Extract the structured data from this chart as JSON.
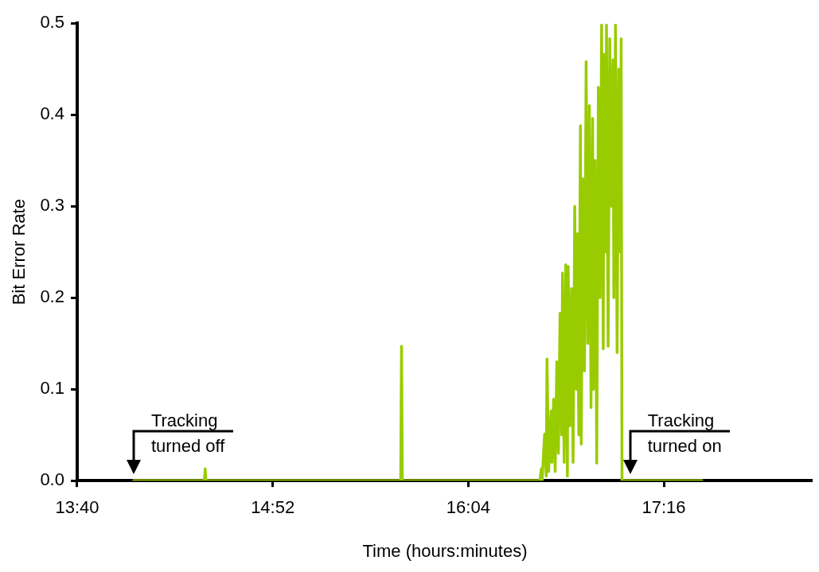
{
  "chart_data": {
    "type": "line",
    "xlabel": "Time (hours:minutes)",
    "ylabel": "Bit Error Rate",
    "xlim": [
      13.6667,
      18.18
    ],
    "xticks": [
      {
        "value": 13.6667,
        "label": "13:40"
      },
      {
        "value": 14.8667,
        "label": "14:52"
      },
      {
        "value": 16.0667,
        "label": "16:04"
      },
      {
        "value": 17.2667,
        "label": "17:16"
      }
    ],
    "ylim": [
      0,
      0.5
    ],
    "yticks": [
      {
        "value": 0,
        "label": "0.0"
      },
      0.1,
      0.2,
      0.3,
      0.4,
      0.5
    ],
    "grid": false,
    "legend": false,
    "marker": "none",
    "line_style": "solid",
    "series": [
      {
        "color": "#99cc00",
        "x": [
          14.013,
          14.447,
          14.452,
          14.457,
          15.652,
          15.657,
          15.662,
          16.506,
          16.515,
          16.52,
          16.535,
          16.545,
          16.55,
          16.56,
          16.575,
          16.58,
          16.59,
          16.6,
          16.61,
          16.62,
          16.63,
          16.64,
          16.645,
          16.655,
          16.665,
          16.675,
          16.68,
          16.69,
          16.7,
          16.71,
          16.72,
          16.73,
          16.735,
          16.745,
          16.755,
          16.76,
          16.77,
          16.78,
          16.79,
          16.8,
          16.81,
          16.82,
          16.83,
          16.835,
          16.845,
          16.855,
          16.865,
          16.875,
          16.885,
          16.895,
          16.9,
          16.91,
          16.915,
          16.925,
          16.935,
          16.945,
          16.955,
          16.96,
          16.97,
          16.98,
          16.99,
          17.0,
          17.005,
          17.01,
          17.02,
          17.03,
          17.04,
          17.05,
          17.055,
          17.06,
          17.5
        ],
        "values": [
          0,
          0,
          0.013,
          0,
          0,
          0.147,
          0,
          0,
          0.013,
          0,
          0.051,
          0.005,
          0.133,
          0.01,
          0.076,
          0.02,
          0.089,
          0.01,
          0.13,
          0.03,
          0.183,
          0.05,
          0.227,
          0.02,
          0.236,
          0.005,
          0.234,
          0.06,
          0.21,
          0.02,
          0.3,
          0.1,
          0.27,
          0.05,
          0.388,
          0.04,
          0.33,
          0.12,
          0.458,
          0.15,
          0.41,
          0.08,
          0.396,
          0.1,
          0.35,
          0.019,
          0.43,
          0.2,
          0.498,
          0.144,
          0.466,
          0.25,
          0.498,
          0.147,
          0.483,
          0.3,
          0.46,
          0.2,
          0.498,
          0.14,
          0.45,
          0.25,
          0.483,
          0,
          0,
          0,
          0,
          0,
          0,
          0,
          0
        ]
      }
    ],
    "annotations": [
      {
        "text": "Tracking\nturned off",
        "x": 14.013,
        "y": 0
      },
      {
        "text": "Tracking\nturned on",
        "x": 17.06,
        "y": 0
      }
    ]
  }
}
